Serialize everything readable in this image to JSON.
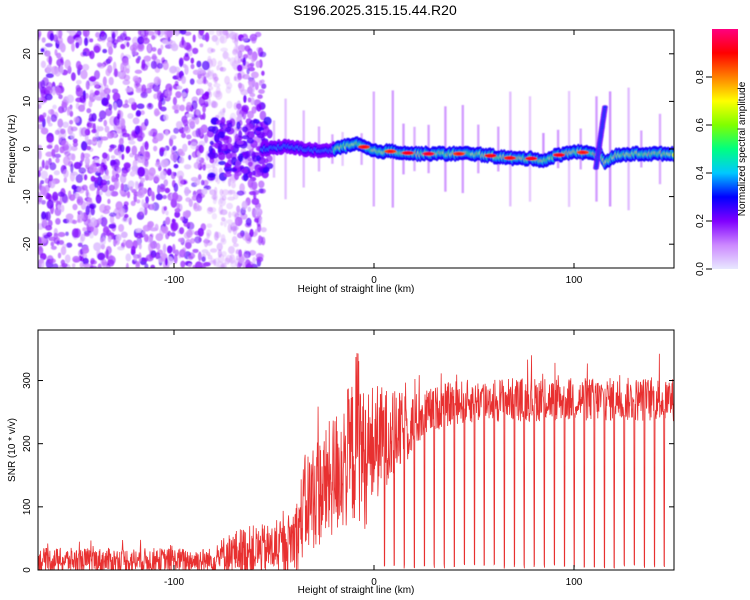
{
  "title": "S196.2025.315.15.44.R20",
  "chart_data": [
    {
      "type": "heatmap",
      "name": "spectrogram",
      "xlabel": "Height of straight line (km)",
      "ylabel": "Frequency (Hz)",
      "xlim": [
        -168,
        150
      ],
      "ylim": [
        -25,
        25
      ],
      "xticks": [
        -100,
        0,
        100
      ],
      "yticks": [
        -20,
        -10,
        0,
        10,
        20
      ],
      "colorbar": {
        "label": "Normalized spectral amplitude",
        "range": [
          0.0,
          1.0
        ],
        "ticks": [
          0.0,
          0.2,
          0.4,
          0.6,
          0.8
        ],
        "tick_labels": [
          "0.0",
          "0.2",
          "0.4",
          "0.6",
          "0.8"
        ],
        "colors": [
          "#e8e8ff",
          "#cc88ff",
          "#8000ff",
          "#0000ff",
          "#00c8ff",
          "#00ff80",
          "#80ff00",
          "#ffff00",
          "#ff8000",
          "#ff0000",
          "#ff0080"
        ]
      },
      "ridge": {
        "x": [
          -56,
          -45,
          -35,
          -25,
          -15,
          -8,
          0,
          10,
          20,
          30,
          40,
          50,
          60,
          70,
          80,
          85,
          90,
          100,
          110,
          113,
          116,
          120,
          130,
          140,
          150
        ],
        "freq": [
          0,
          0.5,
          0,
          -0.5,
          0.5,
          1,
          -0.5,
          -0.5,
          -1,
          -1,
          -1,
          -1,
          -1.5,
          -2,
          -2,
          -2.5,
          -1.5,
          -0.5,
          -1,
          -1,
          -3,
          -1.5,
          -1,
          -1,
          -1
        ]
      },
      "burst": {
        "x": 111,
        "freq_range": [
          -4,
          9
        ]
      },
      "noise_region": {
        "x_range": [
          -168,
          -55
        ]
      },
      "gap_region": {
        "x_range": [
          -83,
          -68
        ]
      }
    },
    {
      "type": "line",
      "name": "snr",
      "xlabel": "Height of straight line (km)",
      "ylabel": "SNR (10 * v/v)",
      "xlim": [
        -168,
        150
      ],
      "ylim": [
        0,
        380
      ],
      "xticks": [
        -100,
        0,
        100
      ],
      "yticks": [
        0,
        100,
        200,
        300
      ],
      "color": "#e83030",
      "envelope": {
        "x": [
          -168,
          -80,
          -75,
          -65,
          -45,
          -38,
          -35,
          -30,
          -25,
          -20,
          -15,
          -10,
          -8,
          -5,
          0,
          5,
          10,
          15,
          20,
          25,
          30,
          40,
          60,
          100,
          150
        ],
        "base": [
          15,
          15,
          25,
          30,
          35,
          60,
          100,
          120,
          130,
          150,
          170,
          190,
          230,
          170,
          200,
          210,
          215,
          220,
          235,
          245,
          255,
          265,
          270,
          270,
          270
        ],
        "spread": [
          20,
          20,
          30,
          40,
          40,
          60,
          80,
          90,
          90,
          100,
          110,
          120,
          150,
          110,
          100,
          80,
          70,
          60,
          45,
          40,
          35,
          35,
          35,
          35,
          35
        ]
      },
      "dropouts_start": 5,
      "dropout_spacing_km": 5
    }
  ]
}
